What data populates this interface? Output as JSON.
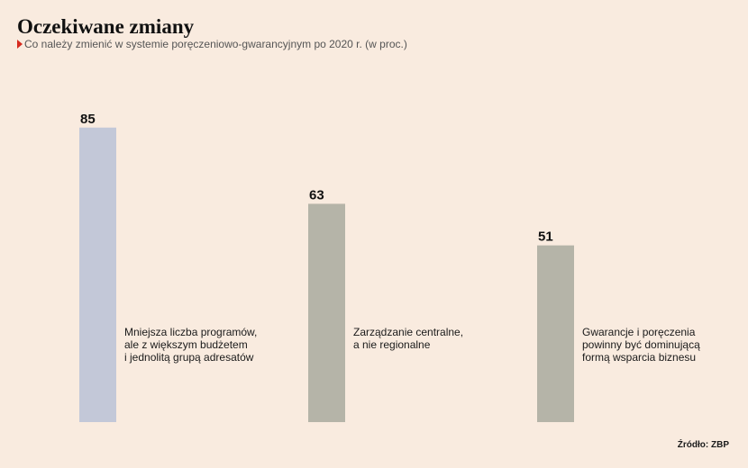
{
  "header": {
    "title": "Oczekiwane zmiany",
    "subtitle": "Co należy zmienić w systemie poręczeniowo-gwarancyjnym po 2020 r. (w proc.)"
  },
  "chart_data": {
    "type": "bar",
    "title": "Oczekiwane zmiany",
    "subtitle": "Co należy zmienić w systemie poręczeniowo-gwarancyjnym po 2020 r. (w proc.)",
    "ylim": [
      0,
      100
    ],
    "grid": false,
    "legend": false,
    "categories": [
      [
        "Mniejsza liczba programów,",
        "ale z większym budżetem",
        "i jednolitą grupą adresatów"
      ],
      [
        "Zarządzanie centralne,",
        "a nie regionalne"
      ],
      [
        "Gwarancje i poręczenia",
        "powinny być dominującą",
        "formą wsparcia biznesu"
      ]
    ],
    "values": [
      85,
      63,
      51
    ],
    "colors": [
      "#c3c8d8",
      "#b5b4a8",
      "#b5b4a8"
    ]
  },
  "footer": {
    "source": "Źródło: ZBP"
  }
}
